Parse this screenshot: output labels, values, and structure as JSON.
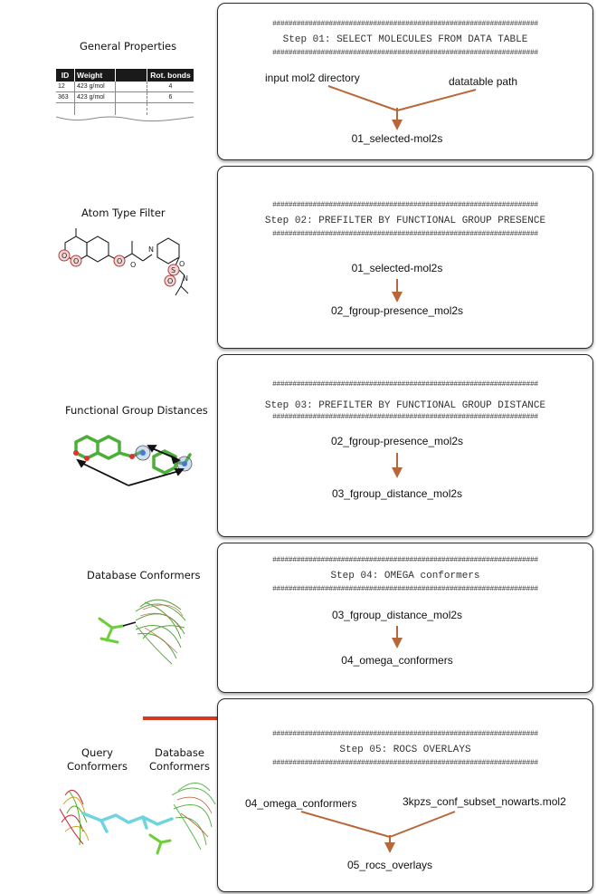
{
  "hash_line": "##################################################################",
  "general_properties": {
    "title": "General Properties",
    "table": {
      "headers": [
        "ID",
        "Weight",
        "",
        "Rot. bonds"
      ],
      "rows": [
        [
          "12",
          "423 g/mol",
          "",
          "4"
        ],
        [
          "363",
          "423 g/mol",
          "",
          "6"
        ]
      ]
    }
  },
  "left_labels": {
    "atom_type": "Atom Type Filter",
    "fgroup_distances": "Functional Group Distances",
    "db_conformers": "Database Conformers",
    "query_conformers": "Query\nConformers",
    "db_conformers_2": "Database\nConformers"
  },
  "steps": [
    {
      "title": "Step 01: SELECT MOLECULES FROM DATA TABLE",
      "input_left": "input mol2 directory",
      "input_right": "datatable path",
      "output": "01_selected-mol2s"
    },
    {
      "title": "Step 02: PREFILTER BY FUNCTIONAL GROUP PRESENCE",
      "input": "01_selected-mol2s",
      "output": "02_fgroup-presence_mol2s"
    },
    {
      "title": "Step 03: PREFILTER BY FUNCTIONAL GROUP DISTANCE",
      "input": "02_fgroup-presence_mol2s",
      "output": "03_fgroup_distance_mol2s"
    },
    {
      "title": "Step 04: OMEGA conformers",
      "input": "03_fgroup_distance_mol2s",
      "output": "04_omega_conformers"
    },
    {
      "title": "Step 05: ROCS OVERLAYS",
      "input_left": "04_omega_conformers",
      "input_right": "3kpzs_conf_subset_nowarts.mol2",
      "output": "05_rocs_overlays"
    }
  ],
  "colors": {
    "arrow": "#b8673a",
    "highlight_arrow": "#d63a1c",
    "box_border": "#2a2a2a"
  }
}
